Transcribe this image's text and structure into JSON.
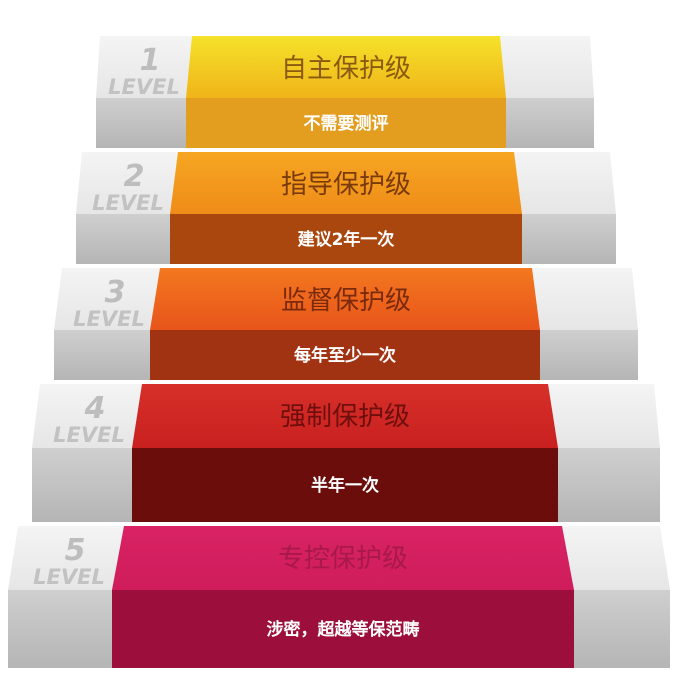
{
  "steps": [
    {
      "level": "1",
      "word": "LEVEL",
      "title": "自主保护级",
      "note": "不需要测评",
      "top": "#f5e22a",
      "top2": "#f0b419",
      "front": "#e39e1f",
      "title_color": "#8a5a10"
    },
    {
      "level": "2",
      "word": "LEVEL",
      "title": "指导保护级",
      "note": "建议2年一次",
      "top": "#f6a622",
      "top2": "#ef8c18",
      "front": "#a9470f",
      "title_color": "#7a3a0a"
    },
    {
      "level": "3",
      "word": "LEVEL",
      "title": "监督保护级",
      "note": "每年至少一次",
      "top": "#f3781f",
      "top2": "#e8541b",
      "front": "#a13212",
      "title_color": "#7b2a0c"
    },
    {
      "level": "4",
      "word": "LEVEL",
      "title": "强制保护级",
      "note": "半年一次",
      "top": "#d7302a",
      "top2": "#c8201f",
      "front": "#6b0d0b",
      "title_color": "#6e0f0d"
    },
    {
      "level": "5",
      "word": "LEVEL",
      "title": "专控保护级",
      "note": "涉密，超越等保范畴",
      "top": "#d92364",
      "top2": "#cf1c5a",
      "front": "#9c0f3c",
      "title_color": "#a81848"
    }
  ]
}
